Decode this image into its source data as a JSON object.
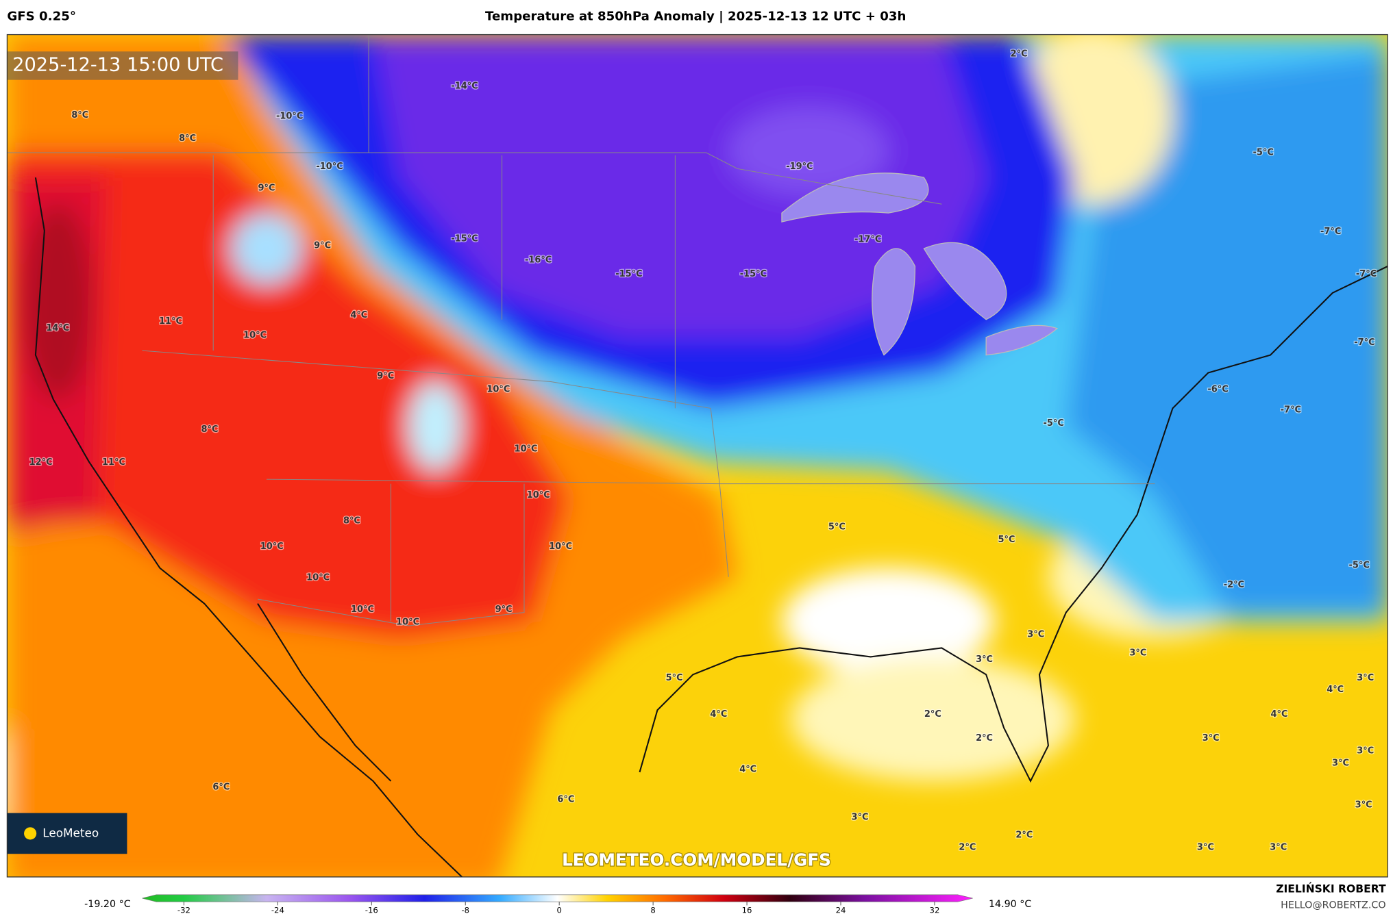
{
  "header": {
    "model": "GFS 0.25°",
    "title": "Temperature at 850hPa Anomaly | 2025-12-13 12 UTC + 03h"
  },
  "map": {
    "timestamp": "2025-12-13 15:00 UTC",
    "labels": [
      "8°C",
      "8°C",
      "-10°C",
      "-14°C",
      "2°C",
      "-10°C",
      "9°C",
      "-19°C",
      "-5°C",
      "9°C",
      "-15°C",
      "-16°C",
      "-15°C",
      "-15°C",
      "-17°C",
      "-7°C",
      "-7°C",
      "14°C",
      "11°C",
      "10°C",
      "4°C",
      "-7°C",
      "9°C",
      "10°C",
      "-6°C",
      "-7°C",
      "8°C",
      "-5°C",
      "10°C",
      "12°C",
      "11°C",
      "10°C",
      "8°C",
      "5°C",
      "5°C",
      "10°C",
      "10°C",
      "-5°C",
      "-2°C",
      "10°C",
      "10°C",
      "9°C",
      "10°C",
      "3°C",
      "3°C",
      "3°C",
      "5°C",
      "4°C",
      "3°C",
      "4°C",
      "2°C",
      "4°C",
      "2°C",
      "3°C",
      "3°C",
      "3°C",
      "4°C",
      "6°C",
      "3°C",
      "6°C",
      "3°C",
      "2°C",
      "2°C",
      "3°C",
      "3°C"
    ],
    "watermark": "LEOMETEO.COM/MODEL/GFS",
    "logo": "LeoMeteo"
  },
  "colorbar": {
    "min_label": "-19.20 °C",
    "max_label": "14.90 °C",
    "ticks": [
      -32,
      -24,
      -16,
      -8,
      0,
      8,
      16,
      24,
      32
    ]
  },
  "credits": {
    "author": "ZIELIŃSKI ROBERT",
    "email": "HELLO@ROBERTZ.CO"
  }
}
